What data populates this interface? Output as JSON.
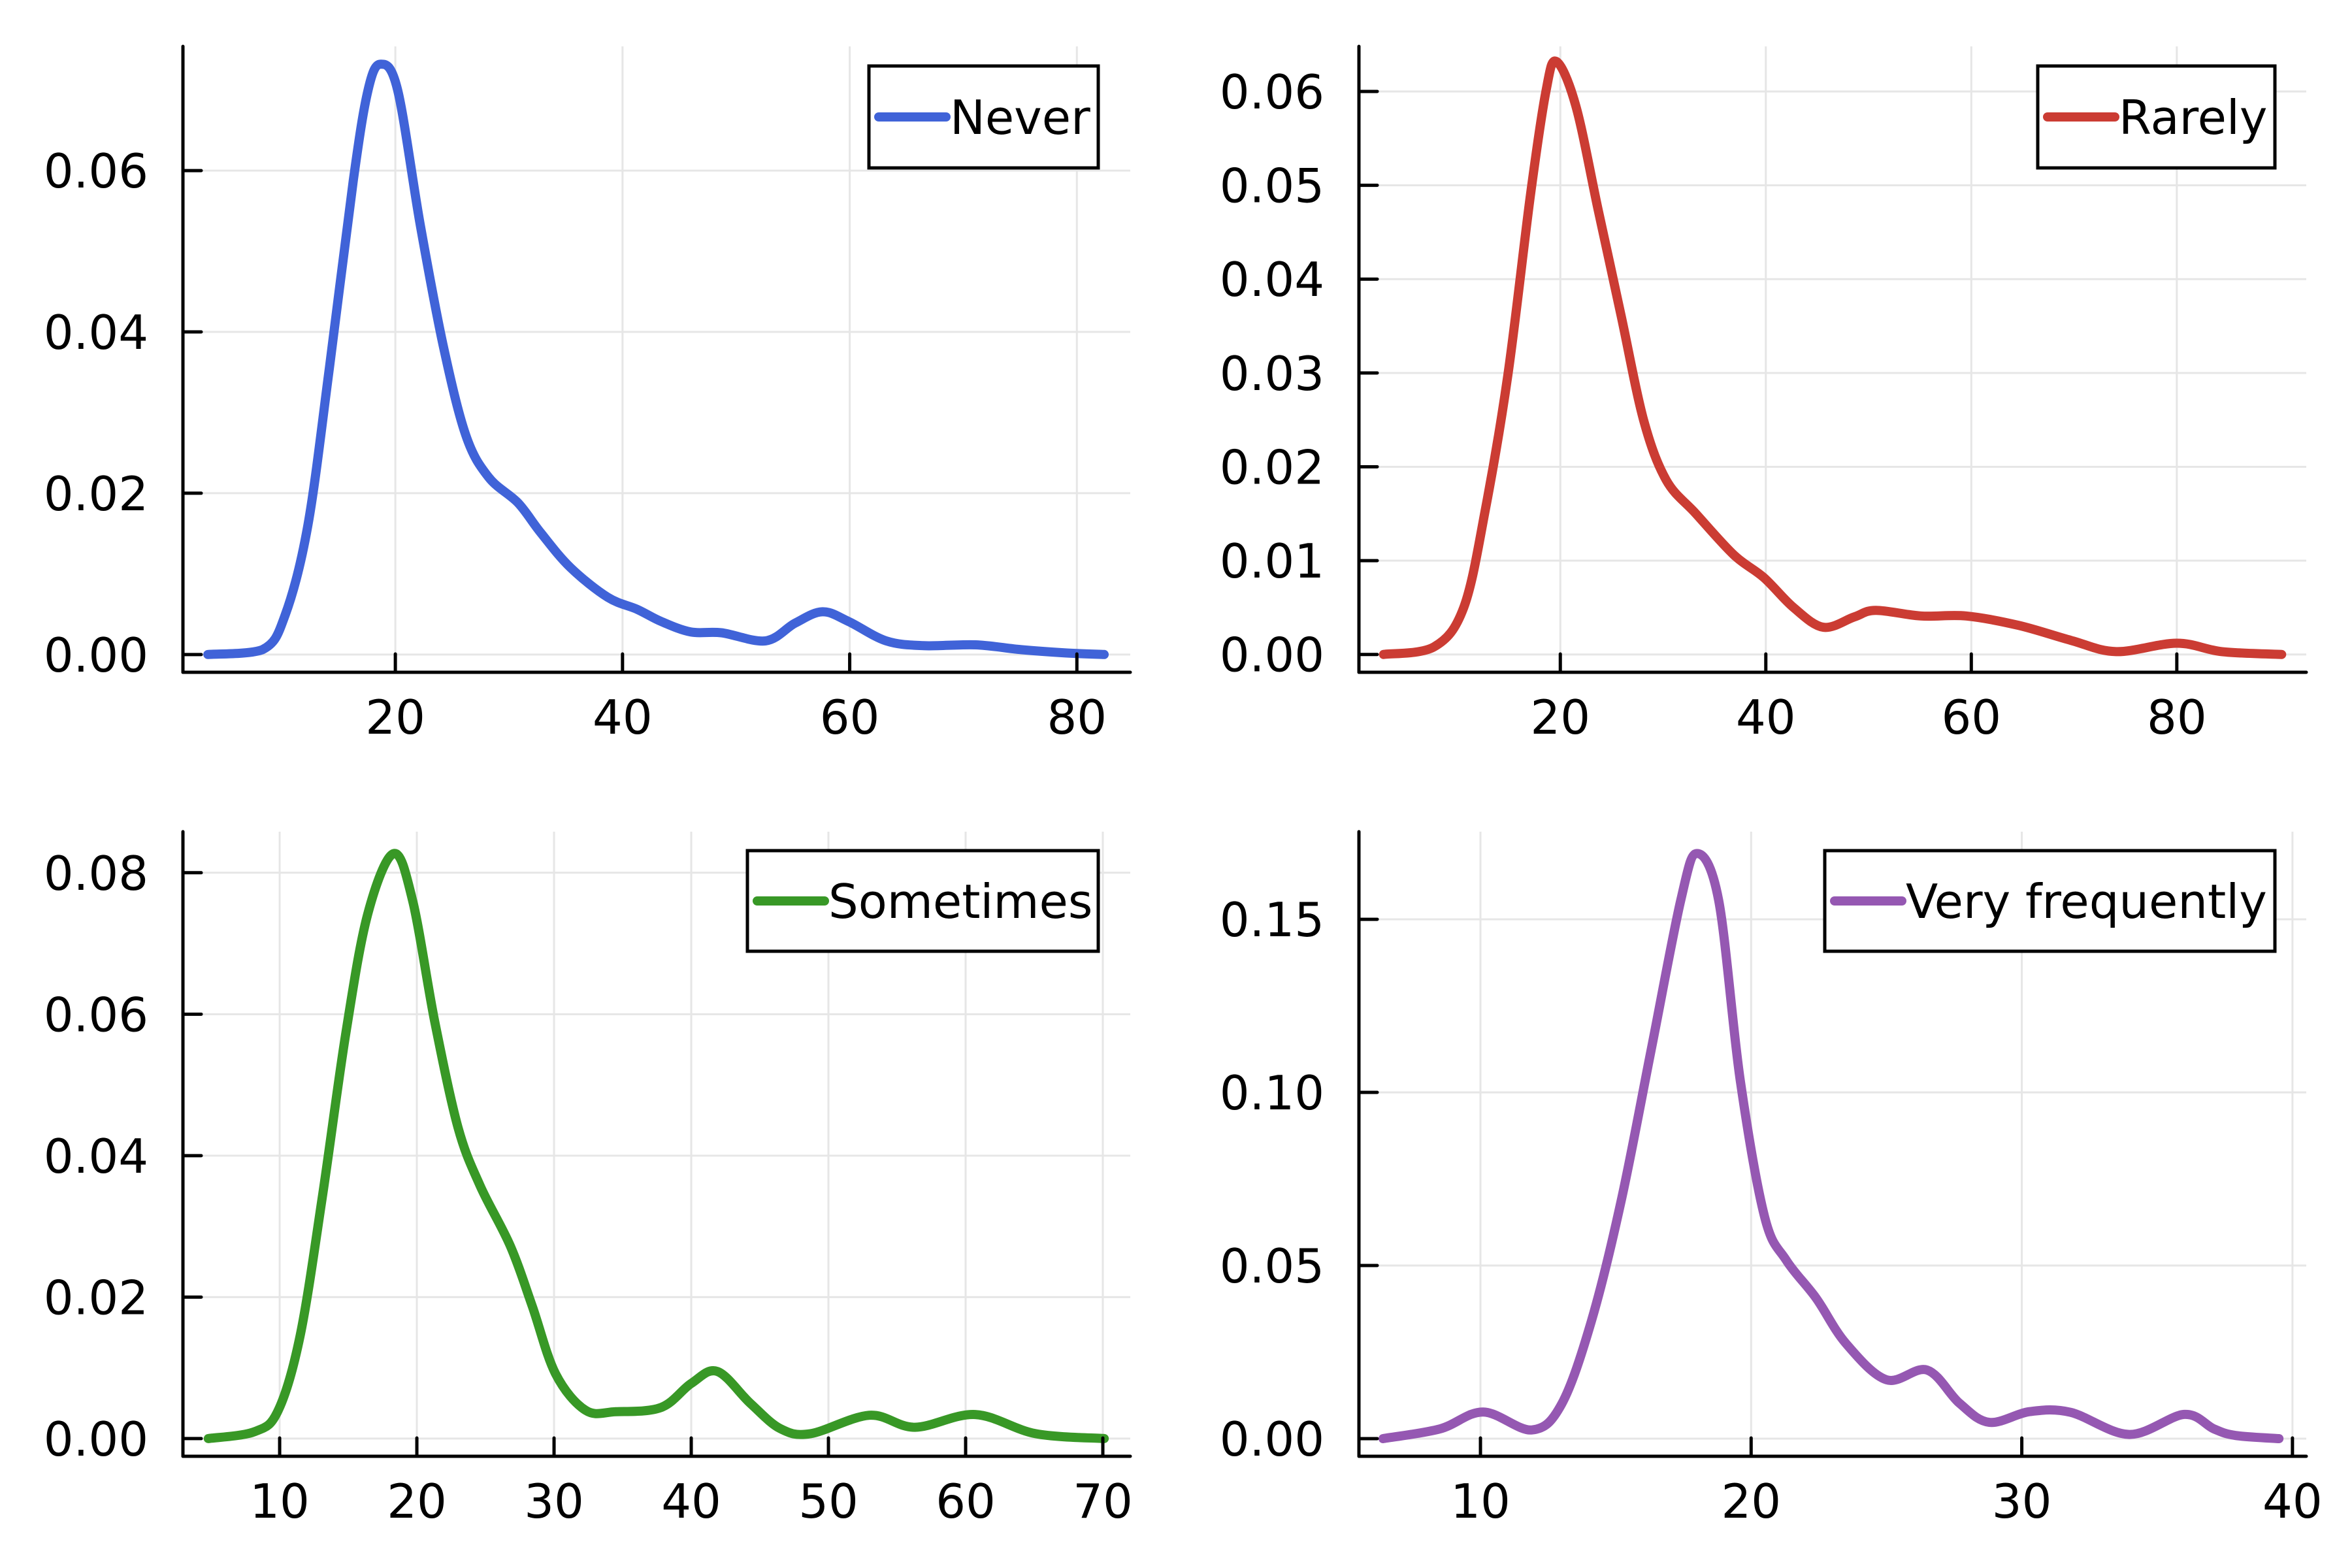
{
  "chart_data": [
    {
      "type": "line",
      "title": "",
      "xlabel": "",
      "ylabel": "",
      "grid": true,
      "legend_position": "top-right",
      "xlim": [
        1.3,
        84.7
      ],
      "ylim": [
        -0.0022,
        0.0754
      ],
      "xticks": [
        20,
        40,
        60,
        80
      ],
      "xtick_labels": [
        "20",
        "40",
        "60",
        "80"
      ],
      "yticks": [
        0.0,
        0.02,
        0.04,
        0.06
      ],
      "ytick_labels": [
        "0.00",
        "0.02",
        "0.04",
        "0.06"
      ],
      "series": [
        {
          "name": "Never",
          "color": "#4063D8",
          "x": [
            3.5,
            8.3,
            10.3,
            12.3,
            14.2,
            16.3,
            17.6,
            18.7,
            20.2,
            22.2,
            24.2,
            26.2,
            28.2,
            30.8,
            32.8,
            35.4,
            38.7,
            41.3,
            43.4,
            46.0,
            48.7,
            52.6,
            55.2,
            57.6,
            59.9,
            63.2,
            66.5,
            71.1,
            75.1,
            79.0,
            82.4
          ],
          "y": [
            0.0,
            0.0006,
            0.0049,
            0.016,
            0.0356,
            0.0588,
            0.07,
            0.0732,
            0.07,
            0.0532,
            0.0384,
            0.0272,
            0.022,
            0.0188,
            0.0151,
            0.0108,
            0.0071,
            0.0056,
            0.0041,
            0.0028,
            0.0027,
            0.0017,
            0.0039,
            0.0053,
            0.0041,
            0.0017,
            0.0011,
            0.0012,
            0.0006,
            0.0002,
            0.0
          ]
        }
      ]
    },
    {
      "type": "line",
      "title": "",
      "xlabel": "",
      "ylabel": "",
      "grid": true,
      "legend_position": "top-right",
      "xlim": [
        0.4,
        92.6
      ],
      "ylim": [
        -0.0019,
        0.0648
      ],
      "xticks": [
        20,
        40,
        60,
        80
      ],
      "xtick_labels": [
        "20",
        "40",
        "60",
        "80"
      ],
      "yticks": [
        0.0,
        0.01,
        0.02,
        0.03,
        0.04,
        0.05,
        0.06
      ],
      "ytick_labels": [
        "0.00",
        "0.01",
        "0.02",
        "0.03",
        "0.04",
        "0.05",
        "0.06"
      ],
      "series": [
        {
          "name": "Rarely",
          "color": "#CB3C33",
          "x": [
            2.8,
            7.7,
            10.6,
            12.7,
            14.9,
            17.1,
            18.6,
            19.6,
            21.5,
            23.7,
            25.9,
            28.1,
            30.3,
            33.2,
            36.9,
            39.8,
            42.7,
            45.6,
            48.6,
            50.7,
            55.1,
            59.5,
            64.6,
            69.7,
            74.1,
            80.0,
            84.4,
            90.2
          ],
          "y": [
            0.0,
            0.0008,
            0.005,
            0.0154,
            0.0298,
            0.049,
            0.06,
            0.0632,
            0.0585,
            0.0473,
            0.0362,
            0.025,
            0.0186,
            0.015,
            0.0106,
            0.0082,
            0.005,
            0.0029,
            0.004,
            0.0047,
            0.0041,
            0.0041,
            0.0031,
            0.0015,
            0.0003,
            0.0012,
            0.0003,
            0.0
          ]
        }
      ]
    },
    {
      "type": "line",
      "title": "",
      "xlabel": "",
      "ylabel": "",
      "grid": true,
      "legend_position": "top-right",
      "xlim": [
        2.95,
        72.0
      ],
      "ylim": [
        -0.0025,
        0.0858
      ],
      "xticks": [
        10,
        20,
        30,
        40,
        50,
        60,
        70
      ],
      "xtick_labels": [
        "10",
        "20",
        "30",
        "40",
        "50",
        "60",
        "70"
      ],
      "yticks": [
        0.0,
        0.02,
        0.04,
        0.06,
        0.08
      ],
      "ytick_labels": [
        "0.00",
        "0.02",
        "0.04",
        "0.06",
        "0.08"
      ],
      "series": [
        {
          "name": "Sometimes",
          "color": "#389826",
          "x": [
            4.8,
            8.2,
            9.9,
            11.5,
            13.1,
            14.8,
            16.4,
            18.3,
            19.7,
            21.3,
            23.0,
            24.6,
            26.8,
            28.4,
            30.1,
            32.3,
            34.5,
            37.8,
            40.0,
            41.9,
            44.3,
            46.5,
            48.7,
            53.0,
            56.3,
            60.7,
            65.1,
            70.1
          ],
          "y": [
            0.0,
            0.001,
            0.004,
            0.0146,
            0.034,
            0.057,
            0.074,
            0.0827,
            0.076,
            0.059,
            0.044,
            0.0358,
            0.0273,
            0.0188,
            0.0092,
            0.004,
            0.0038,
            0.0044,
            0.0078,
            0.0095,
            0.005,
            0.0014,
            0.0007,
            0.0033,
            0.0016,
            0.0034,
            0.0007,
            0.0
          ]
        }
      ]
    },
    {
      "type": "line",
      "title": "",
      "xlabel": "",
      "ylabel": "",
      "grid": true,
      "legend_position": "top-right",
      "xlim": [
        5.51,
        40.51
      ],
      "ylim": [
        -0.0051,
        0.1753
      ],
      "xticks": [
        10,
        20,
        30,
        40
      ],
      "xtick_labels": [
        "10",
        "20",
        "30",
        "40"
      ],
      "yticks": [
        0.0,
        0.05,
        0.1,
        0.15
      ],
      "ytick_labels": [
        "0.00",
        "0.05",
        "0.10",
        "0.15"
      ],
      "series": [
        {
          "name": "Very frequently",
          "color": "#9558B2",
          "x": [
            6.4,
            8.5,
            10.1,
            11.9,
            13.0,
            14.1,
            15.2,
            16.3,
            17.4,
            18.0,
            18.8,
            19.6,
            20.5,
            21.3,
            22.4,
            23.5,
            25.0,
            26.5,
            27.7,
            28.8,
            30.3,
            31.8,
            33.97,
            36.0,
            37.1,
            37.9,
            39.5
          ],
          "y": [
            0.0,
            0.0028,
            0.0077,
            0.0025,
            0.01,
            0.034,
            0.0687,
            0.112,
            0.1555,
            0.169,
            0.1555,
            0.1034,
            0.064,
            0.0515,
            0.0406,
            0.0275,
            0.017,
            0.0198,
            0.0102,
            0.0047,
            0.0078,
            0.0076,
            0.0012,
            0.007,
            0.0028,
            0.0009,
            0.0
          ]
        }
      ]
    }
  ]
}
